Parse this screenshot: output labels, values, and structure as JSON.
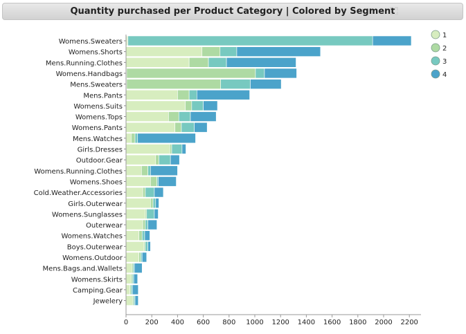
{
  "chart_data": {
    "type": "bar",
    "orientation": "horizontal",
    "stacked": true,
    "title": "Quantity purchased per Product Category | Colored by Segment",
    "xlabel": "",
    "ylabel": "",
    "xlim": [
      0,
      2300
    ],
    "x_ticks": [
      "0",
      "200",
      "400",
      "600",
      "800",
      "1000",
      "1200",
      "1400",
      "1600",
      "1800",
      "2000",
      "2200"
    ],
    "grid": false,
    "legend_position": "top-right",
    "categories": [
      "Womens.Sweaters",
      "Womens.Shorts",
      "Mens.Running.Clothes",
      "Womens.Handbags",
      "Mens.Sweaters",
      "Mens.Pants",
      "Womens.Suits",
      "Womens.Tops",
      "Womens.Pants",
      "Mens.Watches",
      "Girls.Dresses",
      "Outdoor.Gear",
      "Womens.Running.Clothes",
      "Womens.Shoes",
      "Cold.Weather.Accessories",
      "Girls.Outerwear",
      "Womens.Sunglasses",
      "Outerwear",
      "Womens.Watches",
      "Boys.Outerwear",
      "Womens.Outdoor",
      "Mens.Bags.and.Wallets",
      "Womens.Skirts",
      "Camping.Gear",
      "Jewelery"
    ],
    "series": [
      {
        "name": "1",
        "color": "#d7edbf",
        "values": [
          10,
          590,
          490,
          5,
          5,
          400,
          460,
          330,
          380,
          40,
          340,
          230,
          120,
          190,
          130,
          190,
          150,
          130,
          100,
          140,
          100,
          45,
          40,
          30,
          50
        ]
      },
      {
        "name": "2",
        "color": "#aedaa3",
        "values": [
          5,
          140,
          150,
          1000,
          730,
          90,
          50,
          80,
          50,
          30,
          15,
          25,
          50,
          50,
          20,
          20,
          10,
          20,
          25,
          10,
          15,
          10,
          10,
          10,
          10
        ]
      },
      {
        "name": "3",
        "color": "#77c9c0",
        "values": [
          1900,
          130,
          140,
          70,
          230,
          60,
          90,
          90,
          100,
          20,
          80,
          90,
          20,
          10,
          70,
          20,
          60,
          20,
          20,
          20,
          10,
          10,
          10,
          10,
          10
        ]
      },
      {
        "name": "4",
        "color": "#4ba3ca",
        "values": [
          300,
          650,
          540,
          250,
          240,
          410,
          110,
          200,
          100,
          450,
          30,
          70,
          210,
          140,
          70,
          25,
          30,
          70,
          40,
          20,
          35,
          60,
          30,
          45,
          25
        ]
      }
    ]
  }
}
